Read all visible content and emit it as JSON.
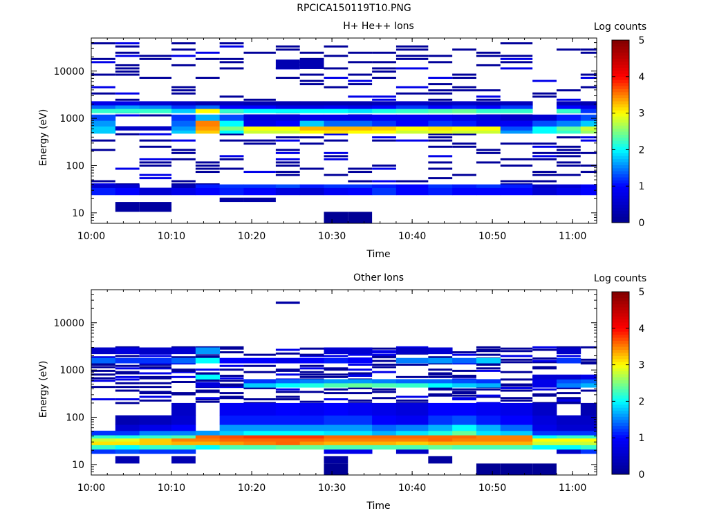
{
  "page": {
    "title": "RPCICA150119T10.PNG"
  },
  "colors": {
    "background": "#ffffff",
    "axis": "#000000",
    "colormap": [
      "#00008f",
      "#0000ff",
      "#00ffff",
      "#ffff00",
      "#ff0000",
      "#800000"
    ]
  },
  "chart_data": [
    {
      "type": "heatmap",
      "title": "H+ He++ Ions",
      "xlabel": "Time",
      "ylabel": "Energy (eV)",
      "colorbar_label": "Log counts",
      "colorbar_range": [
        0,
        5
      ],
      "colorbar_ticks": [
        "0",
        "1",
        "2",
        "3",
        "4",
        "5"
      ],
      "x_range": [
        "10:00",
        "11:03"
      ],
      "x_ticks": [
        "10:00",
        "10:10",
        "10:20",
        "10:30",
        "10:40",
        "10:50",
        "11:00"
      ],
      "y_scale": "log",
      "y_range": [
        6,
        50000
      ],
      "y_ticks": [
        "10",
        "100",
        "1000",
        "10000"
      ],
      "time_bins": [
        "10:00",
        "10:03",
        "10:06",
        "10:10",
        "10:13",
        "10:16",
        "10:19",
        "10:23",
        "10:26",
        "10:29",
        "10:32",
        "10:35",
        "10:38",
        "10:42",
        "10:45",
        "10:48",
        "10:51",
        "10:55",
        "10:58",
        "11:01"
      ],
      "bands": [
        {
          "e_low": 24,
          "e_high": 34,
          "values": [
            1.1,
            1.0,
            0.6,
            0.8,
            1.0,
            1.1,
            1.0,
            0.7,
            0.6,
            0.9,
            1.0,
            1.2,
            1.0,
            1.1,
            1.0,
            1.0,
            1.0,
            0.6,
            0.8,
            1.0
          ]
        },
        {
          "e_low": 34,
          "e_high": 40,
          "values": [
            0.6,
            0.6,
            0,
            0.3,
            1.1,
            1.2,
            1.2,
            1.3,
            1.1,
            1.2,
            1.2,
            1.1,
            1.0,
            1.2,
            1.1,
            1.2,
            1.1,
            0.5,
            0.6,
            0.9
          ]
        },
        {
          "e_low": 480,
          "e_high": 560,
          "values": [
            1.8,
            0,
            0,
            1.8,
            3.2,
            2.0,
            2.8,
            2.8,
            3.0,
            3.1,
            3.0,
            3.0,
            2.8,
            2.9,
            2.8,
            2.8,
            1.6,
            2.0,
            2.2,
            2.6
          ]
        },
        {
          "e_low": 560,
          "e_high": 680,
          "values": [
            1.8,
            0.5,
            0.5,
            1.6,
            3.4,
            2.5,
            3.0,
            3.0,
            3.3,
            3.3,
            3.3,
            3.2,
            3.0,
            3.1,
            3.0,
            3.0,
            1.3,
            2.0,
            2.4,
            2.8
          ]
        },
        {
          "e_low": 680,
          "e_high": 900,
          "values": [
            1.6,
            0,
            0,
            1.4,
            3.5,
            2.0,
            0.8,
            1.0,
            1.8,
            1.4,
            1.4,
            1.2,
            1.0,
            1.2,
            1.1,
            0.8,
            0.9,
            1.3,
            1.5,
            1.8
          ]
        },
        {
          "e_low": 900,
          "e_high": 1200,
          "values": [
            1.3,
            0,
            0,
            1.2,
            1.7,
            1.3,
            0.7,
            0.7,
            0.8,
            0.8,
            0.8,
            0.9,
            0.9,
            0.9,
            0.8,
            0.7,
            0.5,
            0.6,
            1.1,
            1.3
          ]
        },
        {
          "e_low": 1300,
          "e_high": 1600,
          "values": [
            2.2,
            2.2,
            2.2,
            1.8,
            3.0,
            2.2,
            2.0,
            2.0,
            2.0,
            2.0,
            1.9,
            2.1,
            2.2,
            2.3,
            2.4,
            2.2,
            2.2,
            0,
            2.2,
            1.2
          ]
        },
        {
          "e_low": 1600,
          "e_high": 1900,
          "values": [
            1.4,
            1.6,
            1.5,
            1.2,
            1.4,
            1.0,
            1.0,
            0.8,
            0.8,
            0.9,
            0.8,
            1.0,
            1.2,
            1.0,
            1.1,
            1.0,
            1.2,
            0,
            1.0,
            0.8
          ]
        },
        {
          "e_low": 1900,
          "e_high": 2300,
          "values": [
            0.8,
            0.8,
            0.6,
            0.5,
            0.3,
            0.4,
            0.3,
            0.3,
            0.3,
            0.3,
            0.3,
            0.4,
            0.5,
            0.4,
            0.5,
            0.4,
            0.4,
            0,
            0.4,
            0.3
          ]
        }
      ],
      "holes": [
        {
          "e_low": 10.5,
          "e_high": 17,
          "t_index": 1,
          "value": 0.15
        },
        {
          "e_low": 10.5,
          "e_high": 17,
          "t_index": 2,
          "value": 0.15
        },
        {
          "e_low": 6,
          "e_high": 10.5,
          "t_index": 9,
          "value": 0.05
        },
        {
          "e_low": 6,
          "e_high": 10.5,
          "t_index": 10,
          "value": 0.05
        },
        {
          "e_low": 17,
          "e_high": 21,
          "t_index": 5,
          "value": 0.2
        },
        {
          "e_low": 17,
          "e_high": 21,
          "t_index": 6,
          "value": 0.2
        },
        {
          "e_low": 11000,
          "e_high": 17500,
          "t_index": 7,
          "value": 0.3
        },
        {
          "e_low": 11000,
          "e_high": 17500,
          "t_index": 8,
          "value": 0.3
        }
      ],
      "sparse_range": [
        40,
        45000
      ],
      "sparse_density": 0.32
    },
    {
      "type": "heatmap",
      "title": "Other Ions",
      "xlabel": "Time",
      "ylabel": "Energy (eV)",
      "colorbar_label": "Log counts",
      "colorbar_range": [
        0,
        5
      ],
      "colorbar_ticks": [
        "0",
        "1",
        "2",
        "3",
        "4",
        "5"
      ],
      "x_range": [
        "10:00",
        "11:03"
      ],
      "x_ticks": [
        "10:00",
        "10:10",
        "10:20",
        "10:30",
        "10:40",
        "10:50",
        "11:00"
      ],
      "y_scale": "log",
      "y_range": [
        6,
        50000
      ],
      "y_ticks": [
        "10",
        "100",
        "1000",
        "10000"
      ],
      "time_bins": [
        "10:00",
        "10:03",
        "10:06",
        "10:10",
        "10:13",
        "10:16",
        "10:19",
        "10:23",
        "10:26",
        "10:29",
        "10:32",
        "10:35",
        "10:38",
        "10:42",
        "10:45",
        "10:48",
        "10:51",
        "10:55",
        "10:58",
        "11:01"
      ],
      "bands": [
        {
          "e_low": 17,
          "e_high": 21,
          "values": [
            1.2,
            1.3,
            1.2,
            1.2,
            0,
            0,
            0,
            0,
            0,
            0.8,
            0.8,
            0,
            0.5,
            0,
            0,
            0,
            0,
            0,
            0.5,
            1.2
          ]
        },
        {
          "e_low": 21,
          "e_high": 26,
          "values": [
            2.2,
            2.0,
            2.2,
            2.2,
            2.0,
            2.3,
            2.3,
            2.4,
            2.4,
            2.3,
            2.3,
            2.3,
            2.3,
            2.4,
            2.3,
            2.3,
            2.3,
            2.0,
            2.0,
            2.2
          ]
        },
        {
          "e_low": 26,
          "e_high": 31,
          "values": [
            3.1,
            3.1,
            3.2,
            3.3,
            3.3,
            3.4,
            3.5,
            3.6,
            3.4,
            3.3,
            3.3,
            3.3,
            3.2,
            3.3,
            3.3,
            3.3,
            3.3,
            2.8,
            2.8,
            2.8
          ]
        },
        {
          "e_low": 31,
          "e_high": 36,
          "values": [
            2.8,
            2.9,
            3.2,
            3.5,
            3.5,
            3.6,
            3.6,
            3.6,
            3.6,
            3.5,
            3.5,
            3.5,
            3.5,
            3.6,
            3.5,
            3.5,
            3.5,
            3.0,
            3.0,
            3.0
          ]
        },
        {
          "e_low": 36,
          "e_high": 42,
          "values": [
            2.2,
            2.1,
            2.2,
            2.3,
            3.6,
            3.7,
            3.8,
            3.8,
            3.8,
            3.6,
            3.6,
            3.6,
            3.6,
            3.6,
            3.6,
            3.5,
            3.5,
            2.0,
            2.2,
            2.2
          ]
        },
        {
          "e_low": 42,
          "e_high": 52,
          "values": [
            1.2,
            1.2,
            1.5,
            1.5,
            1.6,
            1.8,
            2.0,
            2.0,
            2.0,
            1.9,
            1.9,
            1.7,
            1.9,
            2.1,
            2.4,
            1.9,
            1.8,
            1.2,
            1.2,
            1.2
          ]
        },
        {
          "e_low": 52,
          "e_high": 70,
          "values": [
            0,
            0.6,
            0.8,
            1.0,
            0,
            1.6,
            1.6,
            1.6,
            1.6,
            1.6,
            1.6,
            1.4,
            1.5,
            1.7,
            2.0,
            1.7,
            1.4,
            0.8,
            0.6,
            0.6
          ]
        },
        {
          "e_low": 70,
          "e_high": 110,
          "values": [
            0,
            0.3,
            0.4,
            0.6,
            0,
            1.1,
            1.1,
            1.1,
            1.1,
            1.2,
            1.2,
            1.0,
            0.9,
            1.2,
            1.3,
            1.1,
            1.0,
            0.7,
            0.5,
            0.5
          ]
        },
        {
          "e_low": 110,
          "e_high": 200,
          "values": [
            0,
            0,
            0,
            0.5,
            0,
            0.9,
            0.9,
            1.0,
            0.9,
            1.0,
            0.9,
            0.8,
            0.7,
            1.0,
            1.0,
            0.9,
            0.8,
            0.5,
            0,
            0.3
          ]
        },
        {
          "e_low": 430,
          "e_high": 530,
          "values": [
            0,
            0,
            0,
            0,
            0.7,
            0,
            1.8,
            2.0,
            2.1,
            2.3,
            2.4,
            2.3,
            2.2,
            2.0,
            1.8,
            1.7,
            0,
            0.8,
            1.5,
            1.7
          ]
        },
        {
          "e_low": 530,
          "e_high": 640,
          "values": [
            0,
            0,
            0,
            0,
            0,
            0,
            1.2,
            1.4,
            1.5,
            1.6,
            1.6,
            1.5,
            1.4,
            1.4,
            1.3,
            1.2,
            0,
            0.8,
            1.3,
            1.4
          ]
        },
        {
          "e_low": 640,
          "e_high": 800,
          "values": [
            0,
            0,
            0,
            0,
            2.0,
            0,
            0,
            0,
            0,
            0,
            0,
            0,
            0,
            0,
            0,
            0,
            0,
            0.6,
            0.6,
            0.8
          ]
        },
        {
          "e_low": 1400,
          "e_high": 1800,
          "values": [
            1.4,
            1.2,
            1.2,
            1.4,
            2.0,
            1.0,
            1.0,
            0.8,
            1.0,
            1.1,
            1.0,
            0,
            1.5,
            1.6,
            1.4,
            1.8,
            0,
            0,
            1.2,
            0
          ]
        },
        {
          "e_low": 2200,
          "e_high": 3000,
          "values": [
            0.5,
            0.7,
            0.5,
            0.6,
            1.6,
            0,
            0,
            0,
            0,
            0.6,
            0.6,
            0,
            0.5,
            0.6,
            0,
            0,
            0,
            0,
            0.5,
            0
          ]
        }
      ],
      "holes": [
        {
          "e_low": 10.5,
          "e_high": 15,
          "t_index": 1,
          "value": 0.3
        },
        {
          "e_low": 10.5,
          "e_high": 15,
          "t_index": 3,
          "value": 0.3
        },
        {
          "e_low": 6,
          "e_high": 10.5,
          "t_index": 9,
          "value": 0.05
        },
        {
          "e_low": 10.5,
          "e_high": 15,
          "t_index": 9,
          "value": 0.15
        },
        {
          "e_low": 10.5,
          "e_high": 15,
          "t_index": 13,
          "value": 0.15
        },
        {
          "e_low": 6,
          "e_high": 10.5,
          "t_index": 15,
          "value": 0.05
        },
        {
          "e_low": 6,
          "e_high": 10.5,
          "t_index": 16,
          "value": 0.05
        },
        {
          "e_low": 6,
          "e_high": 10.5,
          "t_index": 17,
          "value": 0.05
        },
        {
          "e_low": 25000,
          "e_high": 28000,
          "t_index": 7,
          "value": 0.2
        }
      ],
      "sparse_range": [
        200,
        3200
      ],
      "sparse_density": 0.3
    }
  ]
}
